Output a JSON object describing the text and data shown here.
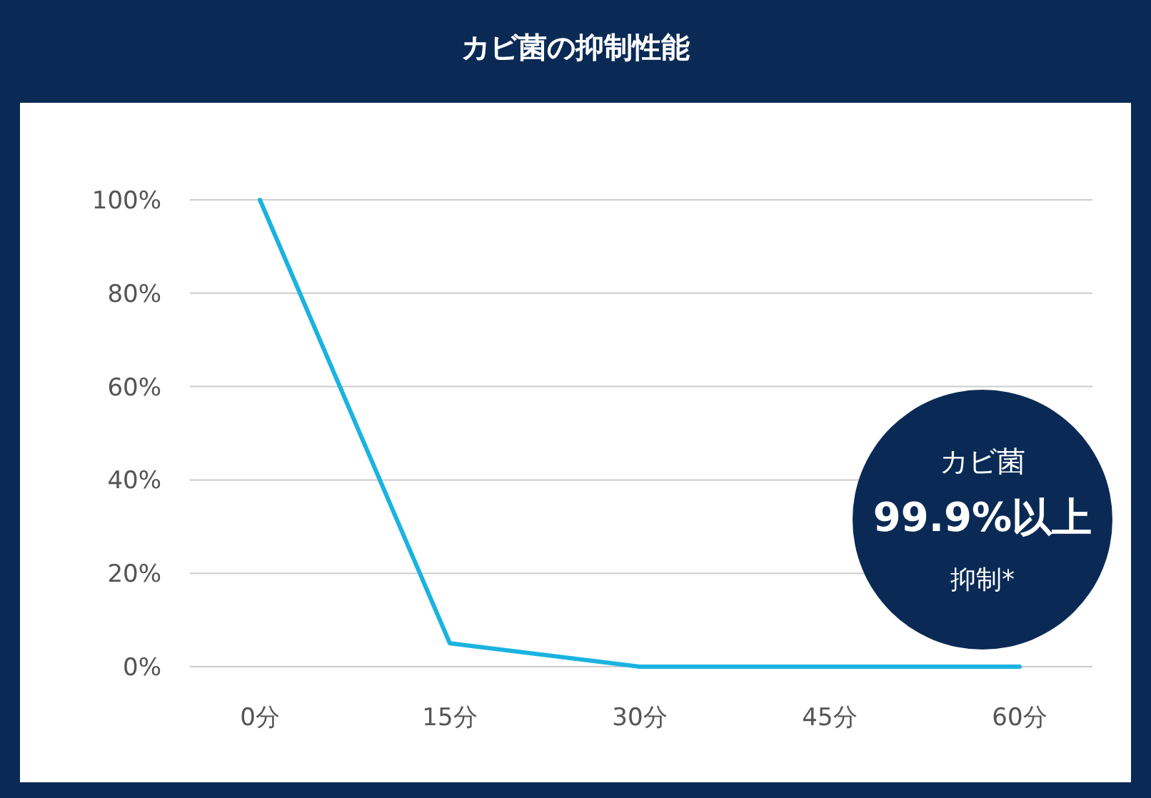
{
  "chart_data": {
    "type": "line",
    "title": "カビ菌の抑制性能",
    "categories": [
      "0分",
      "15分",
      "30分",
      "45分",
      "60分"
    ],
    "series": [
      {
        "color": "#1ab3e0",
        "values": [
          100,
          5,
          0,
          0,
          0
        ]
      }
    ],
    "ylim": [
      0,
      100
    ],
    "yticks": [
      {
        "value": 0,
        "label": "0%"
      },
      {
        "value": 20,
        "label": "20%"
      },
      {
        "value": 40,
        "label": "40%"
      },
      {
        "value": 60,
        "label": "60%"
      },
      {
        "value": 80,
        "label": "80%"
      },
      {
        "value": 100,
        "label": "100%"
      }
    ],
    "grid": "y",
    "annotations": [
      "カビ菌",
      "99.9%以上",
      "抑制*"
    ]
  }
}
